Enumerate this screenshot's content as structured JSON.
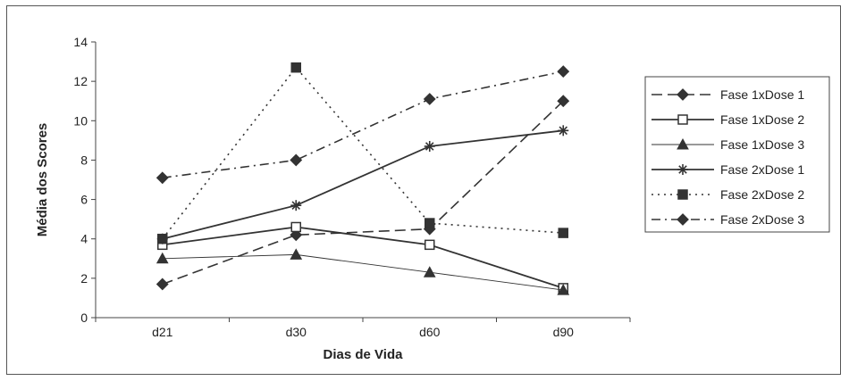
{
  "chart_data": {
    "type": "line",
    "title": "",
    "xlabel": "Dias de Vida",
    "ylabel": "Média dos Scores",
    "categories": [
      "d21",
      "d30",
      "d60",
      "d90"
    ],
    "ylim": [
      0,
      14
    ],
    "yticks": [
      0,
      2,
      4,
      6,
      8,
      10,
      12,
      14
    ],
    "grid": false,
    "legend_position": "right",
    "series": [
      {
        "name": "Fase 1xDose 1",
        "values": [
          1.7,
          4.2,
          4.5,
          11.0
        ],
        "marker": "diamond",
        "dash": "dash",
        "marker_fill": "filled",
        "color": "#333333"
      },
      {
        "name": "Fase 1xDose 2",
        "values": [
          3.7,
          4.6,
          3.7,
          1.5
        ],
        "marker": "square",
        "dash": "solid",
        "marker_fill": "hollow",
        "color": "#333333"
      },
      {
        "name": "Fase 1xDose 3",
        "values": [
          3.0,
          3.2,
          2.3,
          1.4
        ],
        "marker": "triangle",
        "dash": "thin",
        "marker_fill": "filled",
        "color": "#333333"
      },
      {
        "name": "Fase 2xDose 1",
        "values": [
          4.0,
          5.7,
          8.7,
          9.5
        ],
        "marker": "asterisk",
        "dash": "solid",
        "marker_fill": "filled",
        "color": "#333333"
      },
      {
        "name": "Fase 2xDose 2",
        "values": [
          4.0,
          12.7,
          4.8,
          4.3
        ],
        "marker": "square",
        "dash": "dot",
        "marker_fill": "filled",
        "color": "#333333"
      },
      {
        "name": "Fase 2xDose 3",
        "values": [
          7.1,
          8.0,
          11.1,
          12.5
        ],
        "marker": "diamond",
        "dash": "dashdot",
        "marker_fill": "filled",
        "color": "#333333"
      }
    ]
  }
}
